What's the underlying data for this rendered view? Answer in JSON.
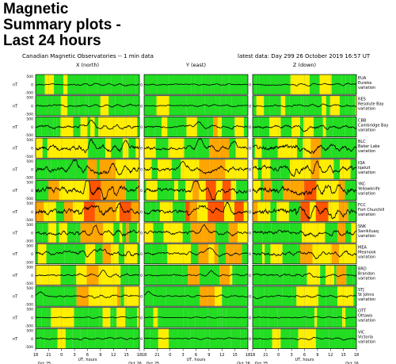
{
  "page": {
    "title_lines": [
      "Magnetic",
      "Summary plots -",
      "Last 24 hours"
    ]
  },
  "chart_data": {
    "type": "line",
    "title": "Canadian Magnetic Observatories -- 1 min data",
    "latest_label": "latest data: Day 299   26 October 2019  16:57 UT",
    "columns": [
      "X (north)",
      "Y (east)",
      "Z (down)"
    ],
    "xlabel": "UT, hours",
    "unit_label": "nT",
    "x_ticks": [
      "18",
      "21",
      "0",
      "3",
      "6",
      "9",
      "12",
      "15",
      "18"
    ],
    "x_range_hours": [
      18,
      42
    ],
    "date_labels": [
      {
        "text": "Oct 25",
        "at_hour": 20
      },
      {
        "text": "Oct 26",
        "at_hour": 41
      }
    ],
    "y_tick_labels": [
      "500",
      "0",
      "-500"
    ],
    "activity_colors": {
      "quiet": "#22dd22",
      "unsettled": "#ffee00",
      "active": "#ffa500",
      "storm": "#ff5500"
    },
    "stations": [
      {
        "code": "EUA",
        "name": "Eureka",
        "activity": "quiet",
        "amplitude": 8,
        "events": []
      },
      {
        "code": "RES",
        "name": "Resolute Bay",
        "activity": "quiet",
        "amplitude": 10,
        "events": []
      },
      {
        "code": "CBB",
        "name": "Cambridge Bay",
        "activity": "unsettled",
        "amplitude": 16,
        "events": [
          {
            "hour": 30.5,
            "depth": -10
          }
        ]
      },
      {
        "code": "BLC",
        "name": "Baker Lake",
        "activity": "active",
        "amplitude": 28,
        "events": [
          {
            "hour": 31.0,
            "depth": -14
          },
          {
            "hour": 38.5,
            "depth": -10
          }
        ]
      },
      {
        "code": "IQA",
        "name": "Iqaluit",
        "activity": "active",
        "amplitude": 30,
        "events": [
          {
            "hour": 27.0,
            "depth": -18
          },
          {
            "hour": 33.0,
            "depth": 10
          }
        ]
      },
      {
        "code": "YKC",
        "name": "Yellowknife",
        "activity": "storm",
        "amplitude": 36,
        "events": [
          {
            "hour": 30.0,
            "depth": -16
          },
          {
            "hour": 34.0,
            "depth": 12
          }
        ]
      },
      {
        "code": "FCC",
        "name": "Fort Churchill",
        "activity": "storm",
        "amplitude": 34,
        "events": [
          {
            "hour": 31.0,
            "depth": -18
          },
          {
            "hour": 37.0,
            "depth": -12
          }
        ]
      },
      {
        "code": "SNK",
        "name": "Sanikiluaq",
        "activity": "active",
        "amplitude": 22,
        "events": [
          {
            "hour": 32.0,
            "depth": -12
          }
        ]
      },
      {
        "code": "MEA",
        "name": "Meanook",
        "activity": "active",
        "amplitude": 20,
        "events": [
          {
            "hour": 33.0,
            "depth": -12
          }
        ]
      },
      {
        "code": "BRD",
        "name": "Brandon",
        "activity": "unsettled",
        "amplitude": 12,
        "events": [
          {
            "hour": 33.5,
            "depth": -8
          }
        ]
      },
      {
        "code": "STJ",
        "name": "St Johns",
        "activity": "unsettled",
        "amplitude": 10,
        "events": [
          {
            "hour": 19.0,
            "depth": -9
          }
        ]
      },
      {
        "code": "OTT",
        "name": "Ottawa",
        "activity": "quiet",
        "amplitude": 6,
        "events": []
      },
      {
        "code": "VIC",
        "name": "Victoria",
        "activity": "quiet",
        "amplitude": 8,
        "events": []
      }
    ],
    "row_suffix": "variation",
    "grid": true
  }
}
